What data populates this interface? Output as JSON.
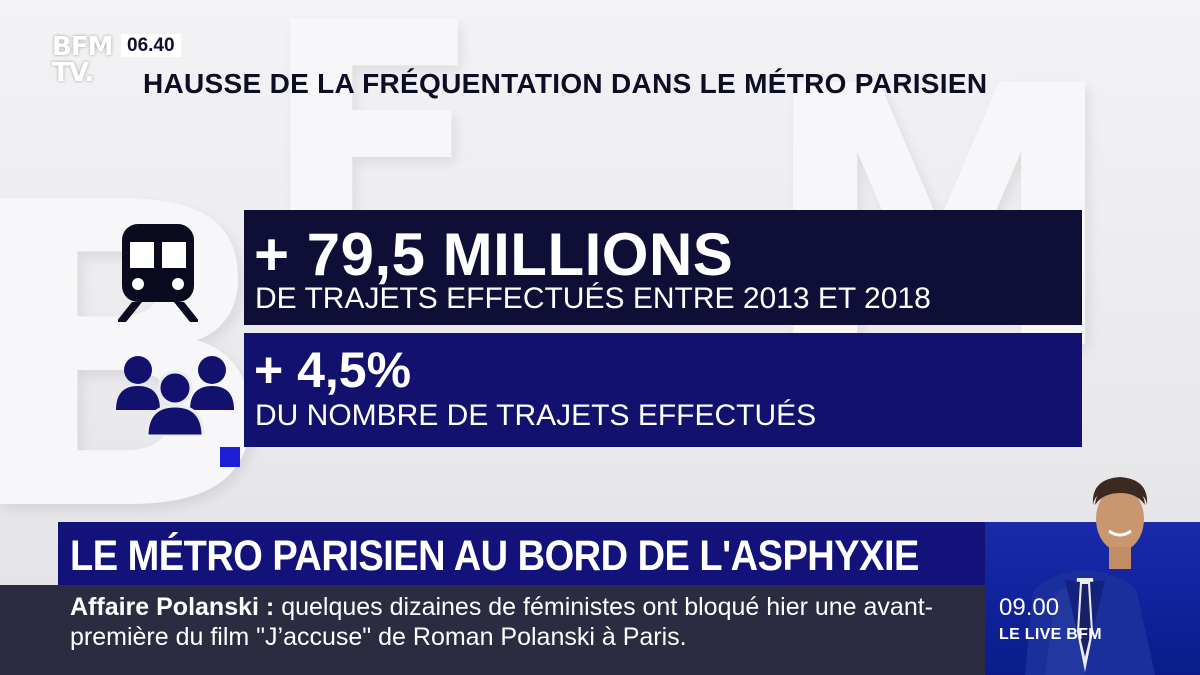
{
  "logo": {
    "line1": "BFM",
    "line2": "TV."
  },
  "clock": "06.40",
  "headline": "HAUSSE DE LA FRÉQUENTATION DANS LE MÉTRO PARISIEN",
  "stats": [
    {
      "big": "+ 79,5 MILLIONS",
      "small": "DE TRAJETS EFFECTUÉS ENTRE 2013 ET 2018",
      "icon": "train-icon"
    },
    {
      "big": "+ 4,5%",
      "small": "DU NOMBRE DE TRAJETS EFFECTUÉS",
      "icon": "people-icon"
    }
  ],
  "lower_third": {
    "title": "LE MÉTRO PARISIEN AU BORD DE L'ASPHYXIE"
  },
  "ticker": {
    "label": "Affaire Polanski :",
    "text": "quelques dizaines de féministes ont bloqué hier une avant-première du film \"J’accuse\" de Roman Polanski à Paris."
  },
  "next_show": {
    "time": "09.00",
    "label": "LE LIVE BFM"
  },
  "colors": {
    "dark_navy": "#0e0e36",
    "royal_blue": "#12126e",
    "band_blue": "#12127a",
    "accent_blue": "#1e1ed6",
    "ticker_grey": "#2b2c42"
  }
}
